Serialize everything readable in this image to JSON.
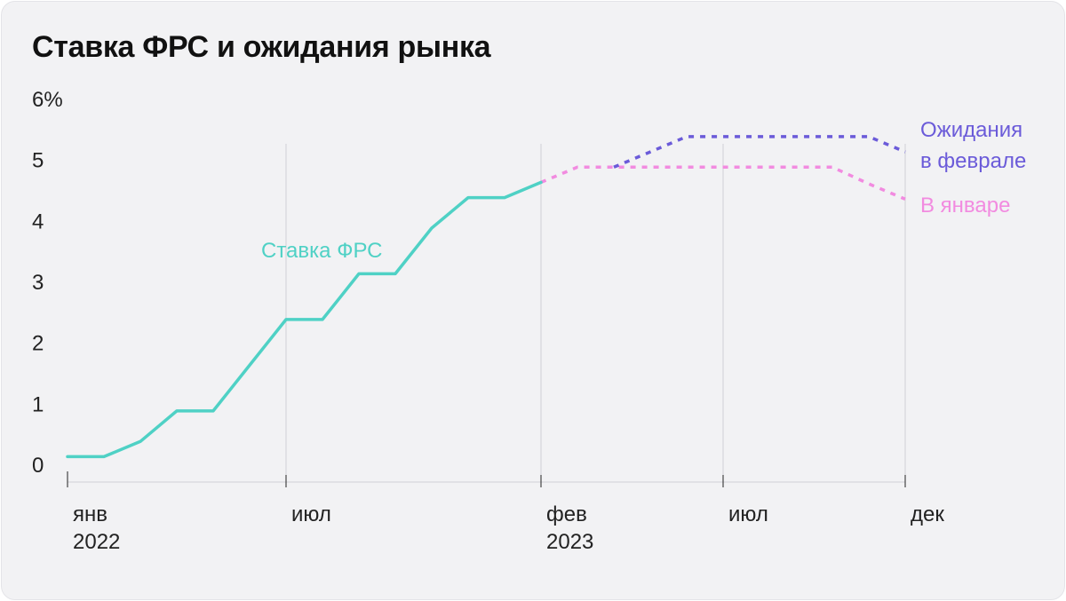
{
  "title": "Ставка ФРС и ожидания рынка",
  "colors": {
    "background": "#f2f2f4",
    "fed_rate": "#4fd1c5",
    "expect_feb": "#6b5bd9",
    "expect_jan": "#f28be0",
    "grid": "#d0d0d6"
  },
  "chart_data": {
    "type": "line",
    "title": "Ставка ФРС и ожидания рынка",
    "ylim": [
      0,
      6
    ],
    "yticks": [
      {
        "value": 0,
        "label": "0"
      },
      {
        "value": 1,
        "label": "1"
      },
      {
        "value": 2,
        "label": "2"
      },
      {
        "value": 3,
        "label": "3"
      },
      {
        "value": 4,
        "label": "4"
      },
      {
        "value": 5,
        "label": "5"
      },
      {
        "value": 6,
        "label": "6%"
      }
    ],
    "x_unit": "months since Jan 2022",
    "xlim": [
      0,
      23
    ],
    "xticks": [
      {
        "value": 0,
        "label": "янв",
        "year": "2022"
      },
      {
        "value": 6,
        "label": "июл",
        "year": ""
      },
      {
        "value": 13,
        "label": "фев",
        "year": "2023"
      },
      {
        "value": 18,
        "label": "июл",
        "year": ""
      },
      {
        "value": 23,
        "label": "дек",
        "year": ""
      }
    ],
    "vgrid": [
      6,
      13,
      18,
      23
    ],
    "series": [
      {
        "name": "Ставка ФРС",
        "style": "solid",
        "color_key": "fed_rate",
        "x": [
          0,
          1,
          2,
          3,
          4,
          5,
          6,
          7,
          8,
          9,
          10,
          11,
          12,
          13
        ],
        "y": [
          0.125,
          0.125,
          0.375,
          0.875,
          0.875,
          1.625,
          2.375,
          2.375,
          3.125,
          3.125,
          3.875,
          4.375,
          4.375,
          4.625
        ]
      },
      {
        "name": "В январе",
        "style": "dashed",
        "color_key": "expect_jan",
        "x": [
          13,
          14,
          15,
          16,
          17,
          18,
          19,
          20,
          21,
          22,
          23
        ],
        "y": [
          4.625,
          4.875,
          4.875,
          4.875,
          4.875,
          4.875,
          4.875,
          4.875,
          4.875,
          4.6,
          4.35
        ]
      },
      {
        "name": "Ожидания в феврале",
        "style": "dashed",
        "color_key": "expect_feb",
        "x": [
          15,
          16,
          17,
          18,
          19,
          20,
          21,
          22,
          23
        ],
        "y": [
          4.875,
          5.125,
          5.375,
          5.375,
          5.375,
          5.375,
          5.375,
          5.375,
          5.125
        ]
      }
    ],
    "annotations": [
      {
        "text": "Ставка ФРС",
        "series": "Ставка ФРС"
      },
      {
        "text": "Ожидания",
        "series": "Ожидания в феврале"
      },
      {
        "text": "в феврале",
        "series": "Ожидания в феврале"
      },
      {
        "text": "В январе",
        "series": "В январе"
      }
    ]
  }
}
